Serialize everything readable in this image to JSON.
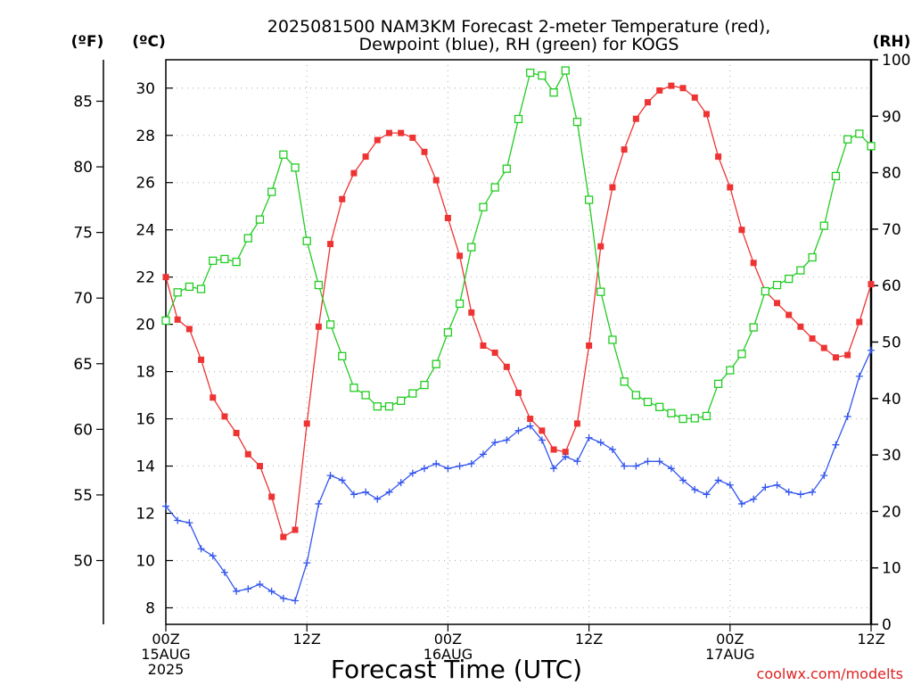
{
  "chart_data": {
    "type": "line",
    "title_lines": [
      "2025081500 NAM3KM Forecast 2-meter Temperature (red),",
      "Dewpoint (blue), RH (green) for KOGS"
    ],
    "xlabel": "Forecast Time (UTC)",
    "credit": "coolwx.com/modelts",
    "unit_labels": {
      "fahrenheit": "(ºF)",
      "celsius": "(ºC)",
      "rh": "(RH)"
    },
    "x_unit": "forecast hour",
    "xlim": [
      0,
      60
    ],
    "x_ticks": [
      {
        "x": 0,
        "lines": [
          "00Z",
          "15AUG",
          "2025"
        ]
      },
      {
        "x": 12,
        "lines": [
          "12Z"
        ]
      },
      {
        "x": 24,
        "lines": [
          "00Z",
          "16AUG"
        ]
      },
      {
        "x": 36,
        "lines": [
          "12Z"
        ]
      },
      {
        "x": 48,
        "lines": [
          "00Z",
          "17AUG"
        ]
      },
      {
        "x": 60,
        "lines": [
          "12Z"
        ]
      }
    ],
    "ylim_c": [
      7.3,
      31.2
    ],
    "y_ticks_c": [
      8,
      10,
      12,
      14,
      16,
      18,
      20,
      22,
      24,
      26,
      28,
      30
    ],
    "y_ticks_f": [
      50,
      55,
      60,
      65,
      70,
      75,
      80,
      85
    ],
    "ylim_rh": [
      0,
      100
    ],
    "y_ticks_rh": [
      0,
      10,
      20,
      30,
      40,
      50,
      60,
      70,
      80,
      90,
      100
    ],
    "grid": true,
    "series": [
      {
        "name": "Temperature",
        "axis": "celsius",
        "color": "#ee3333",
        "marker": "square-filled",
        "x": [
          0,
          1,
          2,
          3,
          4,
          5,
          6,
          7,
          8,
          9,
          10,
          11,
          12,
          13,
          14,
          15,
          16,
          17,
          18,
          19,
          20,
          21,
          22,
          23,
          24,
          25,
          26,
          27,
          28,
          29,
          30,
          31,
          32,
          33,
          34,
          35,
          36,
          37,
          38,
          39,
          40,
          41,
          42,
          43,
          44,
          45,
          46,
          47,
          48,
          49,
          50,
          51,
          52,
          53,
          54,
          55,
          56,
          57,
          58,
          59,
          60
        ],
        "values": [
          22.0,
          20.2,
          19.8,
          18.5,
          16.9,
          16.1,
          15.4,
          14.5,
          14.0,
          12.7,
          11.0,
          11.3,
          15.8,
          19.9,
          23.4,
          25.3,
          26.4,
          27.1,
          27.8,
          28.1,
          28.1,
          27.9,
          27.3,
          26.1,
          24.5,
          22.9,
          20.5,
          19.1,
          18.8,
          18.2,
          17.1,
          16.0,
          15.5,
          14.7,
          14.6,
          15.8,
          19.1,
          23.3,
          25.8,
          27.4,
          28.7,
          29.4,
          29.9,
          30.1,
          30.0,
          29.6,
          28.9,
          27.1,
          25.8,
          24.0,
          22.6,
          21.4,
          20.9,
          20.4,
          19.9,
          19.4,
          19.0,
          18.6,
          18.7,
          20.1,
          21.7
        ]
      },
      {
        "name": "Dewpoint",
        "axis": "celsius",
        "color": "#3355ee",
        "marker": "plus",
        "x": [
          0,
          1,
          2,
          3,
          4,
          5,
          6,
          7,
          8,
          9,
          10,
          11,
          12,
          13,
          14,
          15,
          16,
          17,
          18,
          19,
          20,
          21,
          22,
          23,
          24,
          25,
          26,
          27,
          28,
          29,
          30,
          31,
          32,
          33,
          34,
          35,
          36,
          37,
          38,
          39,
          40,
          41,
          42,
          43,
          44,
          45,
          46,
          47,
          48,
          49,
          50,
          51,
          52,
          53,
          54,
          55,
          56,
          57,
          58,
          59,
          60
        ],
        "values": [
          12.3,
          11.7,
          11.6,
          10.5,
          10.2,
          9.5,
          8.7,
          8.8,
          9.0,
          8.7,
          8.4,
          8.3,
          9.9,
          12.4,
          13.6,
          13.4,
          12.8,
          12.9,
          12.6,
          12.9,
          13.3,
          13.7,
          13.9,
          14.1,
          13.9,
          14.0,
          14.1,
          14.5,
          15.0,
          15.1,
          15.5,
          15.7,
          15.1,
          13.9,
          14.4,
          14.2,
          15.2,
          15.0,
          14.7,
          14.0,
          14.0,
          14.2,
          14.2,
          13.9,
          13.4,
          13.0,
          12.8,
          13.4,
          13.2,
          12.4,
          12.6,
          13.1,
          13.2,
          12.9,
          12.8,
          12.9,
          13.6,
          14.9,
          16.1,
          17.8,
          18.9
        ]
      },
      {
        "name": "RH",
        "axis": "rh",
        "color": "#22cc22",
        "marker": "square-open",
        "x": [
          0,
          1,
          2,
          3,
          4,
          5,
          6,
          7,
          8,
          9,
          10,
          11,
          12,
          13,
          14,
          15,
          16,
          17,
          18,
          19,
          20,
          21,
          22,
          23,
          24,
          25,
          26,
          27,
          28,
          29,
          30,
          31,
          32,
          33,
          34,
          35,
          36,
          37,
          38,
          39,
          40,
          41,
          42,
          43,
          44,
          45,
          46,
          47,
          48,
          49,
          50,
          51,
          52,
          53,
          54,
          55,
          56,
          57,
          58,
          59,
          60
        ],
        "values": [
          53.8,
          58.8,
          59.8,
          59.4,
          64.4,
          64.7,
          64.2,
          68.4,
          71.7,
          76.6,
          83.2,
          80.9,
          67.9,
          60.1,
          53.1,
          47.5,
          41.9,
          40.6,
          38.6,
          38.6,
          39.6,
          40.9,
          42.4,
          46.1,
          51.7,
          56.8,
          66.8,
          73.9,
          77.4,
          80.7,
          89.5,
          97.7,
          97.2,
          94.2,
          98.1,
          89.0,
          75.2,
          58.9,
          50.4,
          43.0,
          40.6,
          39.4,
          38.5,
          37.4,
          36.4,
          36.5,
          36.9,
          42.6,
          45.0,
          47.9,
          52.6,
          59.0,
          60.1,
          61.2,
          62.7,
          65.0,
          70.6,
          79.4,
          85.9,
          86.9,
          84.7
        ]
      }
    ]
  }
}
